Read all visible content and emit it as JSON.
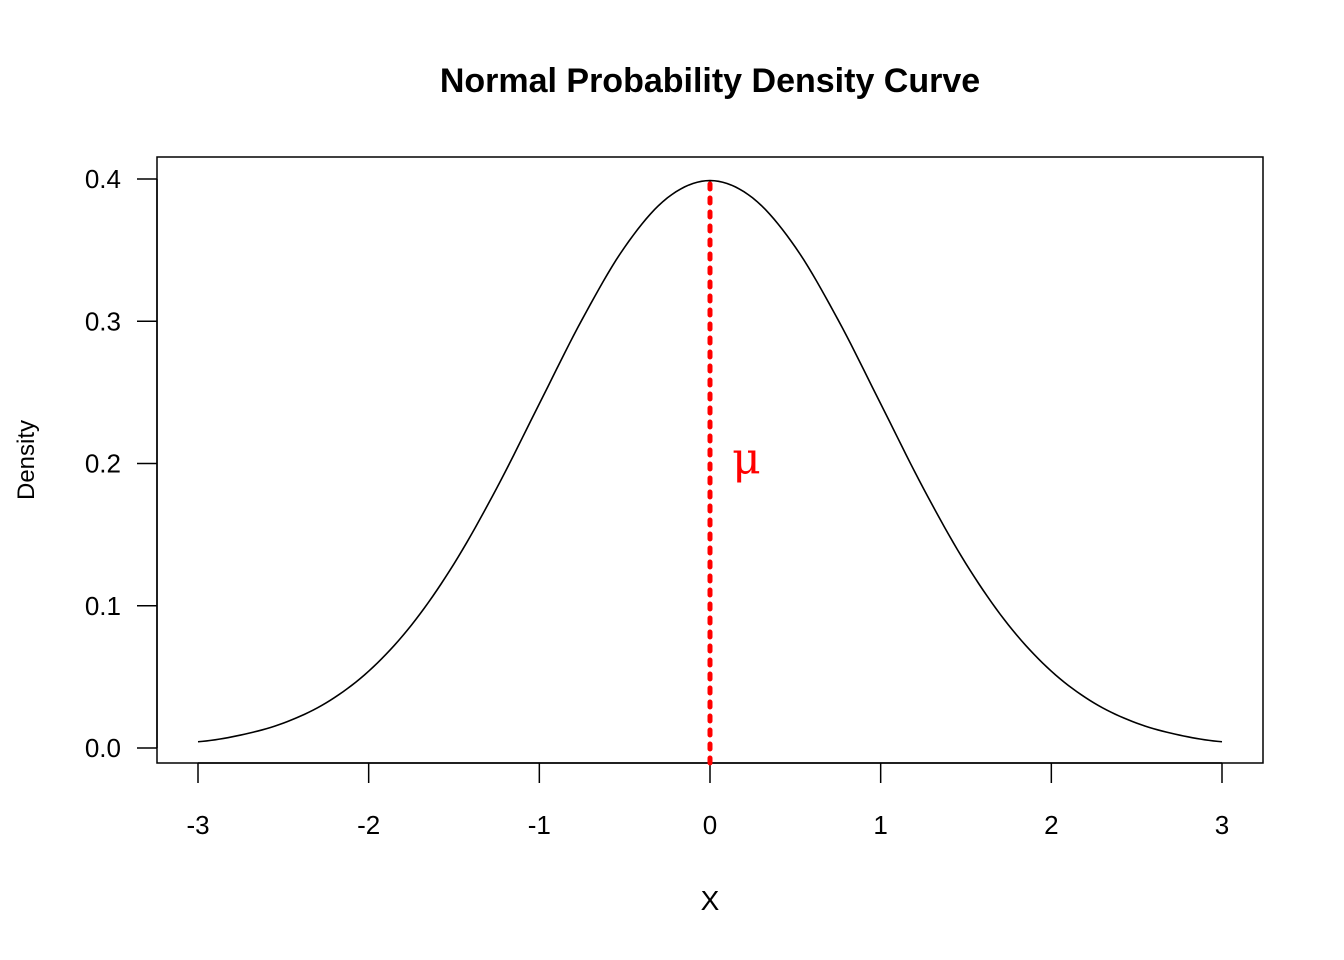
{
  "chart_data": {
    "type": "line",
    "title": "Normal Probability Density Curve",
    "xlabel": "X",
    "ylabel": "Density",
    "xlim": [
      -3,
      3
    ],
    "ylim": [
      0,
      0.4
    ],
    "x_ticks": [
      -3,
      -2,
      -1,
      0,
      1,
      2,
      3
    ],
    "x_tick_labels": [
      "-3",
      "-2",
      "-1",
      "0",
      "1",
      "2",
      "3"
    ],
    "y_ticks": [
      0.0,
      0.1,
      0.2,
      0.3,
      0.4
    ],
    "y_tick_labels": [
      "0.0",
      "0.1",
      "0.2",
      "0.3",
      "0.4"
    ],
    "grid": false,
    "series": [
      {
        "color": "#000000",
        "x": [
          -3.0,
          -2.75,
          -2.5,
          -2.25,
          -2.0,
          -1.75,
          -1.5,
          -1.25,
          -1.0,
          -0.75,
          -0.5,
          -0.25,
          0.0,
          0.25,
          0.5,
          0.75,
          1.0,
          1.25,
          1.5,
          1.75,
          2.0,
          2.25,
          2.5,
          2.75,
          3.0
        ],
        "y": [
          0.0044,
          0.0091,
          0.0175,
          0.0317,
          0.054,
          0.0863,
          0.1295,
          0.1826,
          0.242,
          0.3011,
          0.3521,
          0.3867,
          0.3989,
          0.3867,
          0.3521,
          0.3011,
          0.242,
          0.1826,
          0.1295,
          0.0863,
          0.054,
          0.0317,
          0.0175,
          0.0091,
          0.0044
        ]
      }
    ],
    "reference_line": {
      "x": 0,
      "y_from": 0,
      "y_to": 0.3989,
      "style": "dotted",
      "color": "#ff0000"
    },
    "annotation": {
      "text": "μ",
      "x": 0.2,
      "y": 0.2,
      "color": "#ff0000"
    }
  }
}
